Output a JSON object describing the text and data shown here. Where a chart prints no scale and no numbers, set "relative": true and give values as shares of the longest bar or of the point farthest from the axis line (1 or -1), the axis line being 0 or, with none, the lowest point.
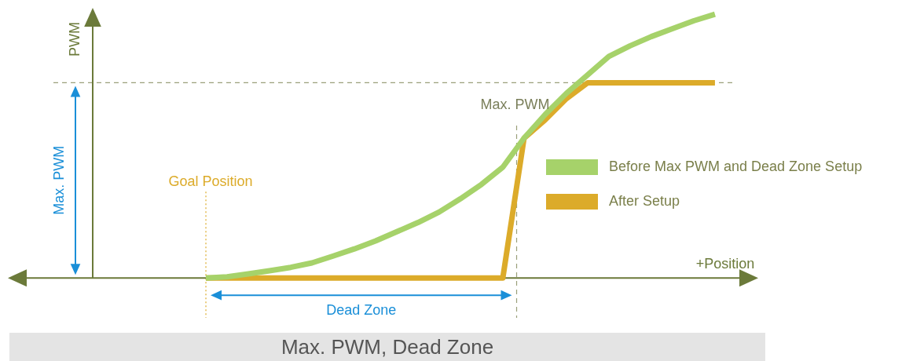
{
  "chart_data": {
    "type": "line",
    "title": "Max. PWM, Dead Zone",
    "xlabel": "+Position",
    "relative": true,
    "tick_labels": false,
    "legend": "right",
    "marker": "none",
    "line_style": "solid",
    "categories": [
      null,
      null,
      null,
      null,
      null,
      null,
      null,
      null,
      null,
      null,
      null,
      null,
      null,
      null,
      null,
      null,
      null,
      null,
      null,
      null,
      null,
      null,
      null,
      null,
      null
    ],
    "series": [
      {
        "name": "Before Max PWM and Dead Zone Setup",
        "color": "#a6d26a",
        "values": [
          0,
          0.004,
          0.015,
          0.027,
          0.04,
          0.057,
          0.083,
          0.11,
          0.14,
          0.175,
          0.21,
          0.25,
          0.3,
          0.355,
          0.42,
          0.53,
          0.62,
          0.7,
          0.77,
          0.84,
          0.88,
          0.915,
          0.945,
          0.975,
          1
        ]
      },
      {
        "name": "After Setup",
        "color": "#dcab2a",
        "values": [
          0,
          0,
          0,
          0,
          0,
          0,
          0,
          0,
          0,
          0,
          0,
          0,
          0,
          0,
          0,
          0.53,
          0.6,
          0.68,
          0.74,
          0.74,
          0.74,
          0.74,
          0.74,
          0.74,
          0.74
        ]
      }
    ],
    "ref_lines": [
      {
        "axis": "y",
        "value": 0.74,
        "color": "#9aa07a",
        "line_style": "dashed"
      }
    ],
    "annotations": [
      "Goal Position",
      "Max. PWM",
      "Dead Zone",
      "Max. PWM",
      "PWM"
    ]
  }
}
